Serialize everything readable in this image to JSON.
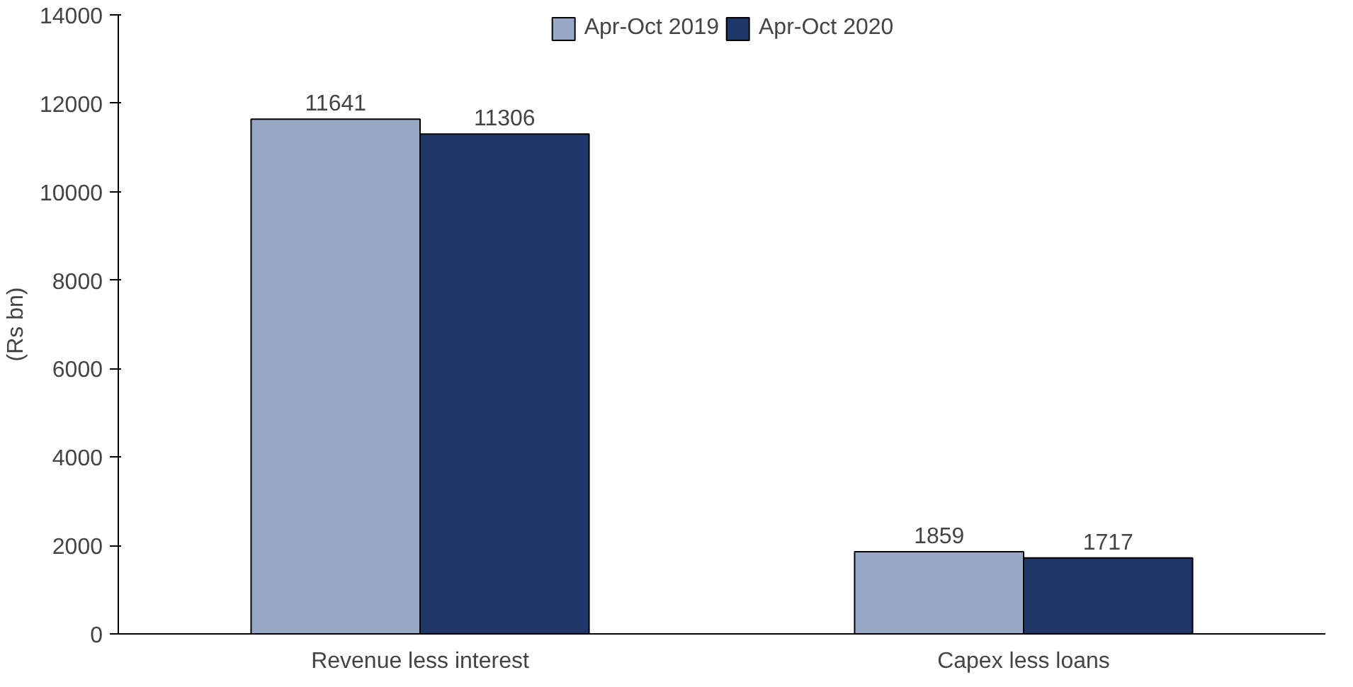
{
  "chart_data": {
    "type": "bar",
    "categories": [
      "Revenue less interest",
      "Capex less loans"
    ],
    "series": [
      {
        "name": "Apr-Oct 2019",
        "color": "#97a8c6",
        "values": [
          11641,
          1859
        ]
      },
      {
        "name": "Apr-Oct 2020",
        "color": "#1f3768",
        "values": [
          11306,
          1717
        ]
      }
    ],
    "ylabel": "(Rs bn)",
    "ylim": [
      0,
      14000
    ],
    "yticks": [
      0,
      2000,
      4000,
      6000,
      8000,
      10000,
      12000,
      14000
    ],
    "data_labels": true,
    "legend": "top",
    "grid": false
  }
}
